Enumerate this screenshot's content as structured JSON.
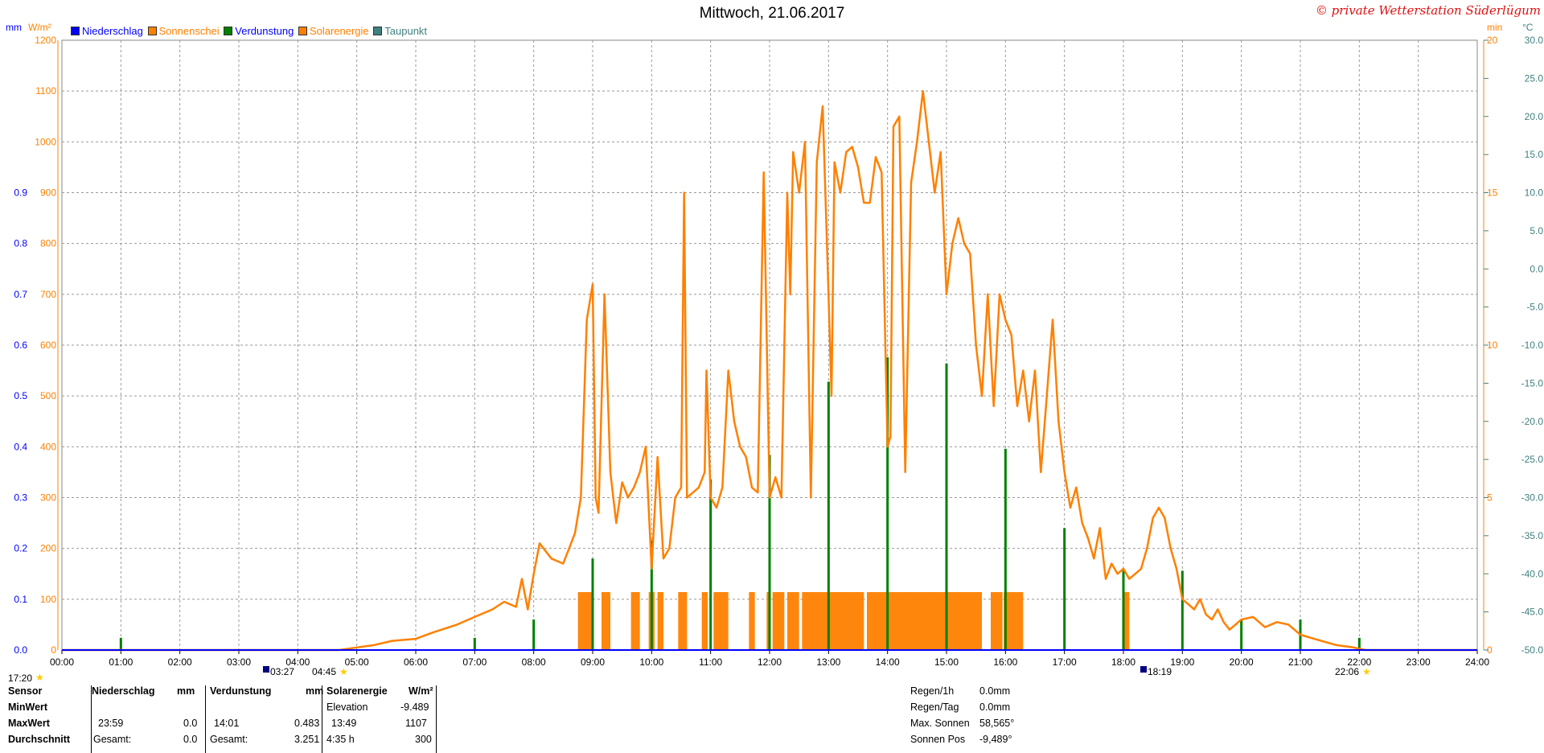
{
  "header": {
    "title": "Mittwoch, 21.06.2017",
    "copyright": "© private Wetterstation Süderlügum"
  },
  "legend": [
    {
      "label": "Niederschlag",
      "color": "#0000ff"
    },
    {
      "label": "Sonnenschei",
      "color": "#ff8000"
    },
    {
      "label": "Verdunstung",
      "color": "#008000"
    },
    {
      "label": "Solarenergie",
      "color": "#ff8000"
    },
    {
      "label": "Taupunkt",
      "color": "#408080"
    }
  ],
  "axes": {
    "left_mm_unit": "mm",
    "left_w_unit": "W/m²",
    "right_min_unit": "min",
    "right_c_unit": "°C",
    "mm_ticks": [
      "0.9",
      "0.8",
      "0.7",
      "0.6",
      "0.5",
      "0.4",
      "0.3",
      "0.2",
      "0.1",
      "0.0"
    ],
    "w_ticks": [
      "1200",
      "1100",
      "1000",
      "900",
      "800",
      "700",
      "600",
      "500",
      "400",
      "300",
      "200",
      "100",
      "0"
    ],
    "min_ticks": [
      "20",
      "15",
      "10",
      "5",
      "0"
    ],
    "c_ticks": [
      "30.0",
      "25.0",
      "20.0",
      "15.0",
      "10.0",
      "5.0",
      "0.0",
      "-5.0",
      "-10.0",
      "-15.0",
      "-20.0",
      "-25.0",
      "-30.0",
      "-35.0",
      "-40.0",
      "-45.0",
      "-50.0"
    ],
    "x_ticks": [
      "00:00",
      "01:00",
      "02:00",
      "03:00",
      "04:00",
      "05:00",
      "06:00",
      "07:00",
      "08:00",
      "09:00",
      "10:00",
      "11:00",
      "12:00",
      "13:00",
      "14:00",
      "15:00",
      "16:00",
      "17:00",
      "18:00",
      "19:00",
      "20:00",
      "21:00",
      "22:00",
      "23:00",
      "24:00"
    ]
  },
  "markers": {
    "moonset": "17:20",
    "sunrise_dawn": "03:27",
    "sunrise": "04:45",
    "sunset_dusk": "18:19",
    "sunset": "22:06"
  },
  "info_table": {
    "headers": [
      "Sensor",
      "Niederschlag",
      "mm",
      "Verdunstung",
      "mm",
      "Solarenergie",
      "W/m²"
    ],
    "rows": [
      {
        "label": "MinWert",
        "c1": "",
        "c2": "",
        "c3": "",
        "c4": "",
        "c5": "Elevation",
        "c6": "-9.489"
      },
      {
        "label": "MaxWert",
        "c1": "23:59",
        "c2": "0.0",
        "c3": "14:01",
        "c4": "0.483",
        "c5": "13:49",
        "c6": "1107"
      },
      {
        "label": "Durchschnitt",
        "c1": "Gesamt:",
        "c2": "0.0",
        "c3": "Gesamt:",
        "c4": "3.251",
        "c5": "4:35 h",
        "c6": "300"
      }
    ]
  },
  "right_info": [
    {
      "label": "Regen/1h",
      "value": "0.0mm"
    },
    {
      "label": "Regen/Tag",
      "value": "0.0mm"
    },
    {
      "label": "Max. Sonnen",
      "value": "58,565°"
    },
    {
      "label": "Sonnen Pos",
      "value": "-9,489°"
    }
  ],
  "chart_data": {
    "type": "line",
    "title": "Mittwoch, 21.06.2017",
    "x_unit": "hours",
    "xlim": [
      0,
      24
    ],
    "series": [
      {
        "name": "Solarenergie",
        "color": "#ff8000",
        "axis": "W/m²",
        "ylim": [
          0,
          1200
        ],
        "points": [
          [
            0,
            0
          ],
          [
            4.7,
            0
          ],
          [
            5.0,
            5
          ],
          [
            5.3,
            10
          ],
          [
            5.6,
            18
          ],
          [
            6.0,
            22
          ],
          [
            6.3,
            35
          ],
          [
            6.7,
            50
          ],
          [
            7.0,
            65
          ],
          [
            7.3,
            80
          ],
          [
            7.5,
            95
          ],
          [
            7.7,
            85
          ],
          [
            7.8,
            140
          ],
          [
            7.9,
            80
          ],
          [
            8.0,
            150
          ],
          [
            8.1,
            210
          ],
          [
            8.3,
            180
          ],
          [
            8.5,
            170
          ],
          [
            8.6,
            200
          ],
          [
            8.7,
            230
          ],
          [
            8.8,
            300
          ],
          [
            8.9,
            650
          ],
          [
            9.0,
            720
          ],
          [
            9.05,
            300
          ],
          [
            9.1,
            270
          ],
          [
            9.2,
            700
          ],
          [
            9.3,
            350
          ],
          [
            9.4,
            250
          ],
          [
            9.5,
            330
          ],
          [
            9.6,
            300
          ],
          [
            9.7,
            320
          ],
          [
            9.8,
            350
          ],
          [
            9.9,
            400
          ],
          [
            10.0,
            160
          ],
          [
            10.05,
            270
          ],
          [
            10.1,
            380
          ],
          [
            10.2,
            180
          ],
          [
            10.3,
            200
          ],
          [
            10.4,
            300
          ],
          [
            10.5,
            320
          ],
          [
            10.55,
            900
          ],
          [
            10.6,
            300
          ],
          [
            10.7,
            310
          ],
          [
            10.8,
            320
          ],
          [
            10.9,
            350
          ],
          [
            10.93,
            550
          ],
          [
            11.0,
            300
          ],
          [
            11.1,
            280
          ],
          [
            11.2,
            320
          ],
          [
            11.3,
            550
          ],
          [
            11.4,
            450
          ],
          [
            11.5,
            400
          ],
          [
            11.6,
            380
          ],
          [
            11.7,
            320
          ],
          [
            11.8,
            310
          ],
          [
            11.9,
            940
          ],
          [
            12.0,
            300
          ],
          [
            12.1,
            340
          ],
          [
            12.2,
            300
          ],
          [
            12.3,
            900
          ],
          [
            12.35,
            700
          ],
          [
            12.4,
            980
          ],
          [
            12.5,
            900
          ],
          [
            12.6,
            1000
          ],
          [
            12.7,
            300
          ],
          [
            12.8,
            960
          ],
          [
            12.9,
            1070
          ],
          [
            13.0,
            700
          ],
          [
            13.05,
            500
          ],
          [
            13.1,
            960
          ],
          [
            13.2,
            900
          ],
          [
            13.3,
            980
          ],
          [
            13.4,
            990
          ],
          [
            13.5,
            950
          ],
          [
            13.6,
            880
          ],
          [
            13.7,
            880
          ],
          [
            13.8,
            970
          ],
          [
            13.9,
            940
          ],
          [
            14.0,
            400
          ],
          [
            14.05,
            420
          ],
          [
            14.1,
            1030
          ],
          [
            14.2,
            1050
          ],
          [
            14.3,
            350
          ],
          [
            14.4,
            920
          ],
          [
            14.5,
            1000
          ],
          [
            14.6,
            1100
          ],
          [
            14.7,
            1000
          ],
          [
            14.8,
            900
          ],
          [
            14.9,
            980
          ],
          [
            15.0,
            700
          ],
          [
            15.1,
            800
          ],
          [
            15.2,
            850
          ],
          [
            15.3,
            800
          ],
          [
            15.4,
            780
          ],
          [
            15.5,
            600
          ],
          [
            15.6,
            500
          ],
          [
            15.7,
            700
          ],
          [
            15.8,
            480
          ],
          [
            15.9,
            700
          ],
          [
            16.0,
            650
          ],
          [
            16.1,
            620
          ],
          [
            16.2,
            480
          ],
          [
            16.3,
            550
          ],
          [
            16.4,
            450
          ],
          [
            16.5,
            550
          ],
          [
            16.6,
            350
          ],
          [
            16.7,
            500
          ],
          [
            16.8,
            650
          ],
          [
            16.9,
            450
          ],
          [
            17.0,
            350
          ],
          [
            17.1,
            280
          ],
          [
            17.2,
            320
          ],
          [
            17.3,
            250
          ],
          [
            17.4,
            220
          ],
          [
            17.5,
            180
          ],
          [
            17.6,
            240
          ],
          [
            17.7,
            140
          ],
          [
            17.8,
            170
          ],
          [
            17.9,
            150
          ],
          [
            18.0,
            160
          ],
          [
            18.1,
            140
          ],
          [
            18.2,
            150
          ],
          [
            18.3,
            160
          ],
          [
            18.4,
            200
          ],
          [
            18.5,
            260
          ],
          [
            18.6,
            280
          ],
          [
            18.7,
            260
          ],
          [
            18.8,
            200
          ],
          [
            18.9,
            160
          ],
          [
            19.0,
            100
          ],
          [
            19.1,
            90
          ],
          [
            19.2,
            80
          ],
          [
            19.3,
            100
          ],
          [
            19.4,
            70
          ],
          [
            19.5,
            60
          ],
          [
            19.6,
            80
          ],
          [
            19.7,
            55
          ],
          [
            19.8,
            40
          ],
          [
            19.9,
            50
          ],
          [
            20.0,
            60
          ],
          [
            20.2,
            65
          ],
          [
            20.4,
            45
          ],
          [
            20.6,
            55
          ],
          [
            20.8,
            50
          ],
          [
            21.0,
            30
          ],
          [
            21.3,
            20
          ],
          [
            21.6,
            10
          ],
          [
            21.9,
            5
          ],
          [
            22.1,
            0
          ],
          [
            24,
            0
          ]
        ]
      },
      {
        "name": "Sonnenschei",
        "color": "#ff8000",
        "axis": "min",
        "type": "bar",
        "ylim": [
          0,
          20
        ],
        "segments": [
          [
            8.75,
            9.0,
            1
          ],
          [
            9.15,
            9.3,
            1
          ],
          [
            9.65,
            9.8,
            1
          ],
          [
            9.95,
            10.05,
            1
          ],
          [
            10.1,
            10.2,
            1
          ],
          [
            10.45,
            10.6,
            1
          ],
          [
            10.85,
            10.95,
            1
          ],
          [
            11.05,
            11.3,
            1
          ],
          [
            11.65,
            11.75,
            1
          ],
          [
            11.95,
            12.0,
            1
          ],
          [
            12.05,
            12.25,
            1
          ],
          [
            12.3,
            12.5,
            1
          ],
          [
            12.55,
            13.6,
            1
          ],
          [
            13.65,
            15.6,
            1
          ],
          [
            15.75,
            15.95,
            1
          ],
          [
            15.97,
            16.3,
            1
          ],
          [
            18.0,
            18.1,
            1
          ]
        ]
      },
      {
        "name": "Verdunstung",
        "color": "#008000",
        "axis": "mm",
        "type": "bar",
        "ylim": [
          0,
          0.9
        ],
        "bars": [
          [
            1.0,
            0.02
          ],
          [
            7.0,
            0.02
          ],
          [
            8.0,
            0.05
          ],
          [
            9.0,
            0.15
          ],
          [
            10.0,
            0.18
          ],
          [
            11.0,
            0.28
          ],
          [
            12.0,
            0.32
          ],
          [
            13.0,
            0.44
          ],
          [
            14.0,
            0.48
          ],
          [
            15.0,
            0.47
          ],
          [
            16.0,
            0.33
          ],
          [
            17.0,
            0.2
          ],
          [
            18.0,
            0.13
          ],
          [
            19.0,
            0.13
          ],
          [
            20.0,
            0.05
          ],
          [
            21.0,
            0.05
          ],
          [
            22.0,
            0.02
          ]
        ]
      },
      {
        "name": "Niederschlag",
        "color": "#0000ff",
        "axis": "mm",
        "values": [
          0
        ]
      }
    ]
  }
}
